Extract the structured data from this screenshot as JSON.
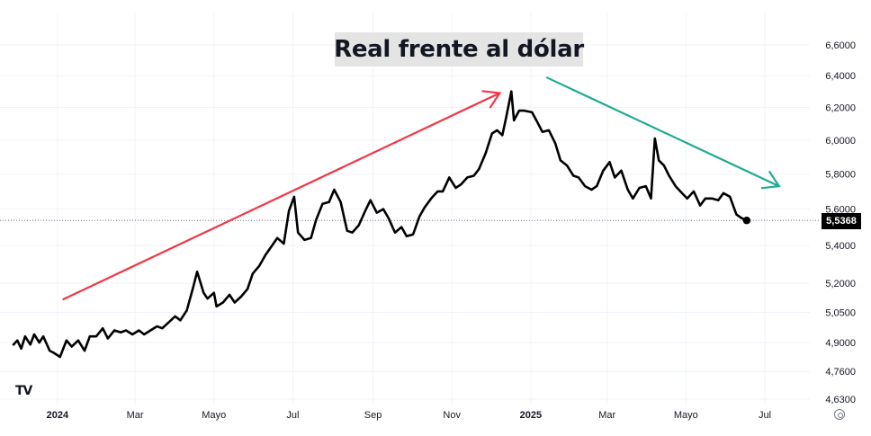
{
  "chart_data": {
    "type": "line",
    "title": "Real frente al dólar",
    "ylim": [
      4.63,
      6.6
    ],
    "y_scale": "log",
    "grid": true,
    "y_ticks": [
      "6,6000",
      "6,4000",
      "6,2000",
      "6,0000",
      "5,8000",
      "5,6000",
      "5,4000",
      "5,2000",
      "5,0500",
      "4,9000",
      "4,7600",
      "4,6300"
    ],
    "x_ticks": [
      {
        "label": "2024",
        "date": "2024-01-01",
        "bold": true
      },
      {
        "label": "Mar",
        "date": "2024-03-01",
        "bold": false
      },
      {
        "label": "Mayo",
        "date": "2024-05-01",
        "bold": false
      },
      {
        "label": "Jul",
        "date": "2024-07-01",
        "bold": false
      },
      {
        "label": "Sep",
        "date": "2024-09-01",
        "bold": false
      },
      {
        "label": "Nov",
        "date": "2024-11-01",
        "bold": false
      },
      {
        "label": "2025",
        "date": "2025-01-01",
        "bold": true
      },
      {
        "label": "Mar",
        "date": "2025-03-01",
        "bold": false
      },
      {
        "label": "Mayo",
        "date": "2025-05-01",
        "bold": false
      },
      {
        "label": "Jul",
        "date": "2025-07-01",
        "bold": false
      }
    ],
    "series": [
      {
        "color": "#000000",
        "points": [
          [
            "2023-11-28",
            4.89
          ],
          [
            "2023-12-01",
            4.91
          ],
          [
            "2023-12-04",
            4.87
          ],
          [
            "2023-12-07",
            4.93
          ],
          [
            "2023-12-11",
            4.89
          ],
          [
            "2023-12-14",
            4.94
          ],
          [
            "2023-12-18",
            4.9
          ],
          [
            "2023-12-21",
            4.93
          ],
          [
            "2023-12-26",
            4.86
          ],
          [
            "2023-12-29",
            4.85
          ],
          [
            "2024-01-03",
            4.83
          ],
          [
            "2024-01-08",
            4.91
          ],
          [
            "2024-01-12",
            4.88
          ],
          [
            "2024-01-17",
            4.91
          ],
          [
            "2024-01-22",
            4.86
          ],
          [
            "2024-01-26",
            4.93
          ],
          [
            "2024-01-31",
            4.93
          ],
          [
            "2024-02-05",
            4.97
          ],
          [
            "2024-02-09",
            4.92
          ],
          [
            "2024-02-14",
            4.96
          ],
          [
            "2024-02-19",
            4.95
          ],
          [
            "2024-02-23",
            4.96
          ],
          [
            "2024-02-28",
            4.94
          ],
          [
            "2024-03-04",
            4.96
          ],
          [
            "2024-03-08",
            4.94
          ],
          [
            "2024-03-13",
            4.96
          ],
          [
            "2024-03-18",
            4.98
          ],
          [
            "2024-03-22",
            4.97
          ],
          [
            "2024-03-27",
            5.0
          ],
          [
            "2024-04-01",
            5.03
          ],
          [
            "2024-04-05",
            5.01
          ],
          [
            "2024-04-10",
            5.06
          ],
          [
            "2024-04-15",
            5.18
          ],
          [
            "2024-04-18",
            5.26
          ],
          [
            "2024-04-23",
            5.15
          ],
          [
            "2024-04-26",
            5.12
          ],
          [
            "2024-05-01",
            5.15
          ],
          [
            "2024-05-03",
            5.08
          ],
          [
            "2024-05-08",
            5.1
          ],
          [
            "2024-05-13",
            5.14
          ],
          [
            "2024-05-17",
            5.1
          ],
          [
            "2024-05-22",
            5.13
          ],
          [
            "2024-05-27",
            5.17
          ],
          [
            "2024-05-31",
            5.25
          ],
          [
            "2024-06-05",
            5.29
          ],
          [
            "2024-06-10",
            5.35
          ],
          [
            "2024-06-14",
            5.39
          ],
          [
            "2024-06-19",
            5.44
          ],
          [
            "2024-06-24",
            5.41
          ],
          [
            "2024-06-28",
            5.59
          ],
          [
            "2024-07-02",
            5.67
          ],
          [
            "2024-07-05",
            5.47
          ],
          [
            "2024-07-10",
            5.43
          ],
          [
            "2024-07-15",
            5.44
          ],
          [
            "2024-07-19",
            5.54
          ],
          [
            "2024-07-24",
            5.63
          ],
          [
            "2024-07-29",
            5.64
          ],
          [
            "2024-08-02",
            5.71
          ],
          [
            "2024-08-07",
            5.64
          ],
          [
            "2024-08-12",
            5.48
          ],
          [
            "2024-08-16",
            5.47
          ],
          [
            "2024-08-21",
            5.51
          ],
          [
            "2024-08-26",
            5.59
          ],
          [
            "2024-08-30",
            5.65
          ],
          [
            "2024-09-04",
            5.58
          ],
          [
            "2024-09-09",
            5.6
          ],
          [
            "2024-09-13",
            5.55
          ],
          [
            "2024-09-18",
            5.47
          ],
          [
            "2024-09-23",
            5.5
          ],
          [
            "2024-09-27",
            5.45
          ],
          [
            "2024-10-02",
            5.46
          ],
          [
            "2024-10-07",
            5.56
          ],
          [
            "2024-10-11",
            5.61
          ],
          [
            "2024-10-16",
            5.66
          ],
          [
            "2024-10-21",
            5.7
          ],
          [
            "2024-10-25",
            5.7
          ],
          [
            "2024-10-30",
            5.78
          ],
          [
            "2024-11-04",
            5.72
          ],
          [
            "2024-11-08",
            5.74
          ],
          [
            "2024-11-13",
            5.78
          ],
          [
            "2024-11-18",
            5.79
          ],
          [
            "2024-11-22",
            5.83
          ],
          [
            "2024-11-27",
            5.92
          ],
          [
            "2024-12-02",
            6.04
          ],
          [
            "2024-12-06",
            6.06
          ],
          [
            "2024-12-10",
            6.03
          ],
          [
            "2024-12-13",
            6.14
          ],
          [
            "2024-12-17",
            6.3
          ],
          [
            "2024-12-19",
            6.12
          ],
          [
            "2024-12-23",
            6.18
          ],
          [
            "2024-12-27",
            6.18
          ],
          [
            "2025-01-02",
            6.17
          ],
          [
            "2025-01-06",
            6.11
          ],
          [
            "2025-01-10",
            6.05
          ],
          [
            "2025-01-15",
            6.06
          ],
          [
            "2025-01-20",
            5.98
          ],
          [
            "2025-01-24",
            5.88
          ],
          [
            "2025-01-29",
            5.85
          ],
          [
            "2025-02-03",
            5.79
          ],
          [
            "2025-02-07",
            5.78
          ],
          [
            "2025-02-12",
            5.73
          ],
          [
            "2025-02-17",
            5.71
          ],
          [
            "2025-02-21",
            5.73
          ],
          [
            "2025-02-26",
            5.82
          ],
          [
            "2025-03-03",
            5.87
          ],
          [
            "2025-03-07",
            5.78
          ],
          [
            "2025-03-12",
            5.82
          ],
          [
            "2025-03-17",
            5.71
          ],
          [
            "2025-03-21",
            5.66
          ],
          [
            "2025-03-26",
            5.72
          ],
          [
            "2025-03-31",
            5.73
          ],
          [
            "2025-04-04",
            5.66
          ],
          [
            "2025-04-07",
            6.01
          ],
          [
            "2025-04-10",
            5.88
          ],
          [
            "2025-04-14",
            5.85
          ],
          [
            "2025-04-18",
            5.79
          ],
          [
            "2025-04-23",
            5.73
          ],
          [
            "2025-04-28",
            5.69
          ],
          [
            "2025-05-02",
            5.66
          ],
          [
            "2025-05-07",
            5.7
          ],
          [
            "2025-05-12",
            5.62
          ],
          [
            "2025-05-16",
            5.66
          ],
          [
            "2025-05-21",
            5.66
          ],
          [
            "2025-05-26",
            5.65
          ],
          [
            "2025-05-30",
            5.69
          ],
          [
            "2025-06-04",
            5.67
          ],
          [
            "2025-06-09",
            5.57
          ],
          [
            "2025-06-13",
            5.55
          ],
          [
            "2025-06-17",
            5.5368
          ]
        ]
      }
    ],
    "last_value": "5,5368",
    "annotations": [
      {
        "type": "arrow",
        "color": "#f23645",
        "from": [
          "2024-01-05",
          5.115
        ],
        "to": [
          "2024-12-08",
          6.29
        ]
      },
      {
        "type": "arrow",
        "color": "#22ab94",
        "from": [
          "2025-01-13",
          6.39
        ],
        "to": [
          "2025-07-12",
          5.73
        ]
      }
    ],
    "last_value_line": {
      "color": "#787b86",
      "style": "dotted"
    }
  },
  "branding": {
    "logo": "TV"
  },
  "icons": {
    "settings": "gear-icon"
  }
}
